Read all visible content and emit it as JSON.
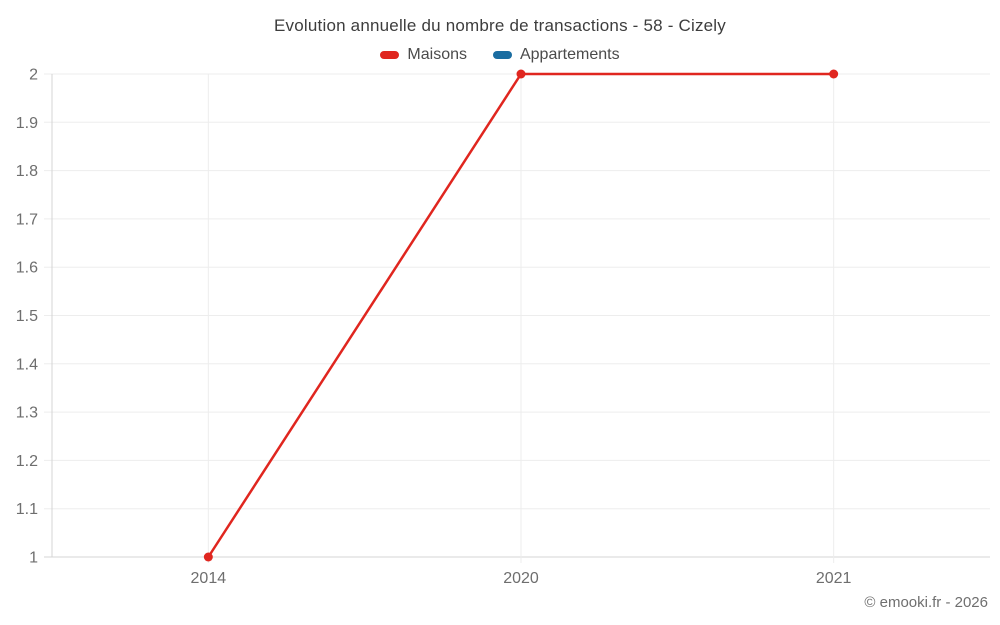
{
  "footer": {
    "watermark": "© emooki.fr - 2026"
  },
  "chart_data": {
    "type": "line",
    "title": "Evolution annuelle du nombre de transactions - 58 - Cizely",
    "categories": [
      "2014",
      "2020",
      "2021"
    ],
    "series": [
      {
        "name": "Maisons",
        "color": "#e0261f",
        "values": [
          1,
          2,
          2
        ]
      },
      {
        "name": "Appartements",
        "color": "#1a6da1",
        "values": []
      }
    ],
    "xlabel": "",
    "ylabel": "",
    "ylim": [
      1,
      2
    ],
    "ytick_step": 0.1,
    "yticks": [
      "2",
      "1.9",
      "1.8",
      "1.7",
      "1.6",
      "1.5",
      "1.4",
      "1.3",
      "1.2",
      "1.1",
      "1"
    ],
    "grid": true,
    "legend_position": "top",
    "colors": {
      "grid": "#ededed",
      "axis": "#d4d4d4",
      "tick_label": "#6e6e6e",
      "title_text": "#3d3d3d",
      "legend_text": "#4b4b4b"
    }
  }
}
